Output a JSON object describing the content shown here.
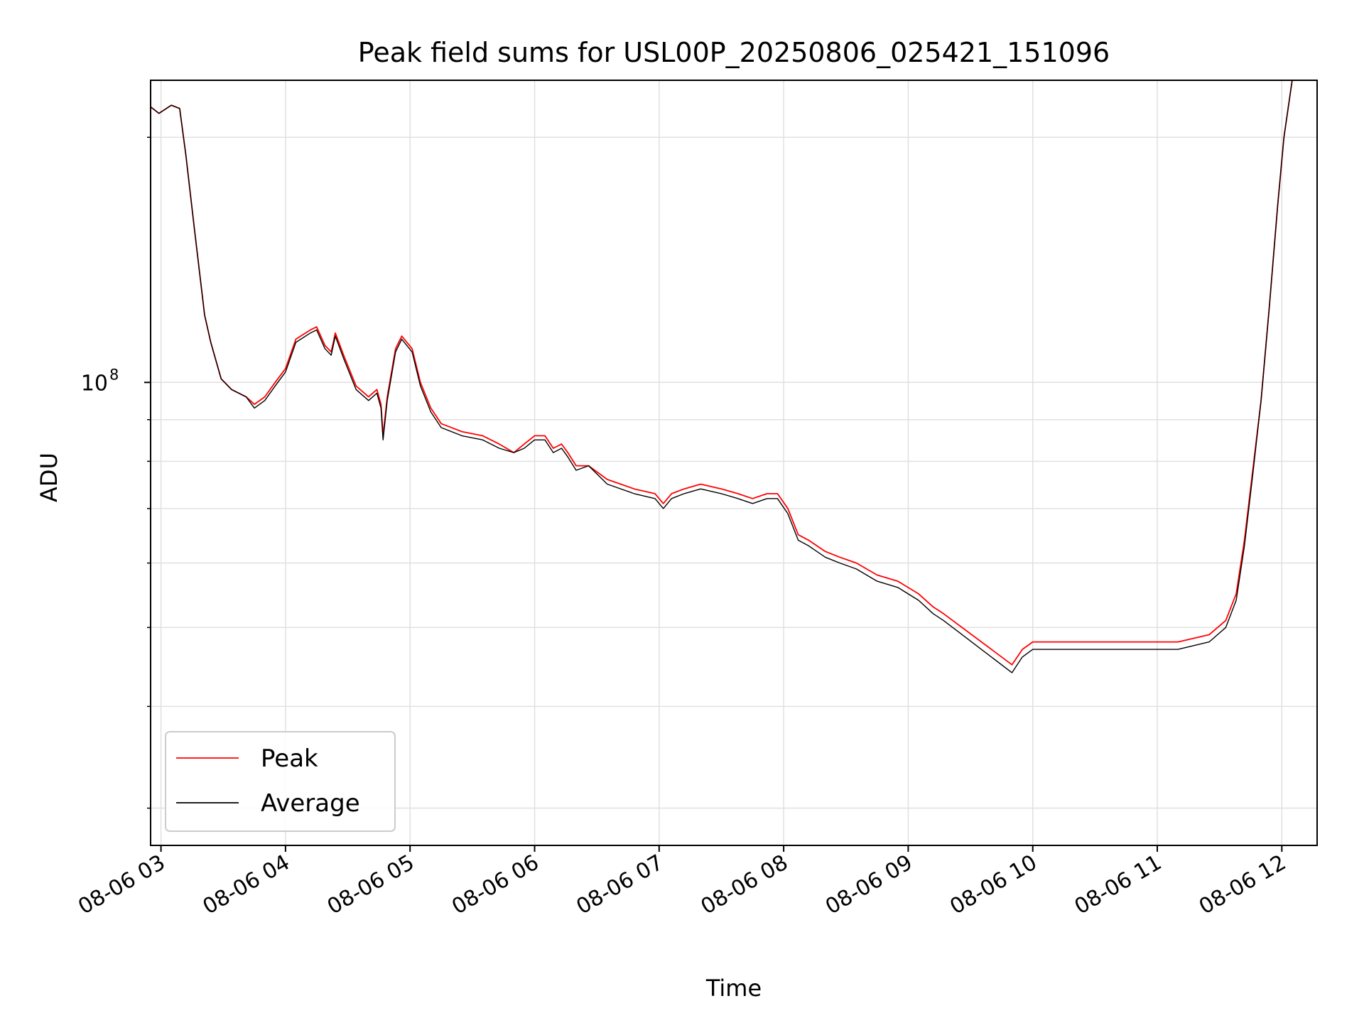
{
  "chart_data": {
    "type": "line",
    "title": "Peak field sums for USL00P_20250806_025421_151096",
    "xlabel": "Time",
    "ylabel": "ADU",
    "yscale": "log",
    "grid": true,
    "legend_position": "lower-left",
    "x_tick_labels": [
      "08-06 03",
      "08-06 04",
      "08-06 05",
      "08-06 06",
      "08-06 07",
      "08-06 08",
      "08-06 09",
      "08-06 10",
      "08-06 11",
      "08-06 12"
    ],
    "y_tick_major_label": "10",
    "y_tick_major_exponent": "8",
    "y_major_value": 100000000,
    "xlim": [
      "2025-08-06 02:55",
      "2025-08-06 12:17"
    ],
    "ylim": [
      27000000,
      235000000
    ],
    "series": [
      {
        "name": "Peak",
        "color": "#ff0000",
        "points": [
          [
            "2025-08-06 02:55",
            218000000
          ],
          [
            "2025-08-06 02:59",
            214000000
          ],
          [
            "2025-08-06 03:05",
            219000000
          ],
          [
            "2025-08-06 03:09",
            217000000
          ],
          [
            "2025-08-06 03:12",
            190000000
          ],
          [
            "2025-08-06 03:16",
            155000000
          ],
          [
            "2025-08-06 03:21",
            121000000
          ],
          [
            "2025-08-06 03:24",
            112000000
          ],
          [
            "2025-08-06 03:29",
            101000000
          ],
          [
            "2025-08-06 03:34",
            98000000
          ],
          [
            "2025-08-06 03:41",
            96000000
          ],
          [
            "2025-08-06 03:45",
            94000000
          ],
          [
            "2025-08-06 03:50",
            96000000
          ],
          [
            "2025-08-06 03:55",
            100000000
          ],
          [
            "2025-08-06 04:00",
            104000000
          ],
          [
            "2025-08-06 04:05",
            113000000
          ],
          [
            "2025-08-06 04:12",
            116000000
          ],
          [
            "2025-08-06 04:15",
            117000000
          ],
          [
            "2025-08-06 04:19",
            111000000
          ],
          [
            "2025-08-06 04:22",
            109000000
          ],
          [
            "2025-08-06 04:24",
            115000000
          ],
          [
            "2025-08-06 04:28",
            108000000
          ],
          [
            "2025-08-06 04:34",
            99000000
          ],
          [
            "2025-08-06 04:40",
            96000000
          ],
          [
            "2025-08-06 04:44",
            98000000
          ],
          [
            "2025-08-06 04:46",
            94000000
          ],
          [
            "2025-08-06 04:47",
            86000000
          ],
          [
            "2025-08-06 04:49",
            96000000
          ],
          [
            "2025-08-06 04:53",
            110000000
          ],
          [
            "2025-08-06 04:56",
            114000000
          ],
          [
            "2025-08-06 05:01",
            110000000
          ],
          [
            "2025-08-06 05:05",
            100000000
          ],
          [
            "2025-08-06 05:10",
            93000000
          ],
          [
            "2025-08-06 05:15",
            89000000
          ],
          [
            "2025-08-06 05:25",
            87000000
          ],
          [
            "2025-08-06 05:35",
            86000000
          ],
          [
            "2025-08-06 05:43",
            84000000
          ],
          [
            "2025-08-06 05:50",
            82000000
          ],
          [
            "2025-08-06 05:55",
            84000000
          ],
          [
            "2025-08-06 06:00",
            86000000
          ],
          [
            "2025-08-06 06:05",
            86000000
          ],
          [
            "2025-08-06 06:09",
            83000000
          ],
          [
            "2025-08-06 06:13",
            84000000
          ],
          [
            "2025-08-06 06:16",
            82000000
          ],
          [
            "2025-08-06 06:20",
            79000000
          ],
          [
            "2025-08-06 06:26",
            79000000
          ],
          [
            "2025-08-06 06:35",
            76000000
          ],
          [
            "2025-08-06 06:48",
            74000000
          ],
          [
            "2025-08-06 06:58",
            73000000
          ],
          [
            "2025-08-06 07:02",
            71000000
          ],
          [
            "2025-08-06 07:06",
            73000000
          ],
          [
            "2025-08-06 07:12",
            74000000
          ],
          [
            "2025-08-06 07:20",
            75000000
          ],
          [
            "2025-08-06 07:30",
            74000000
          ],
          [
            "2025-08-06 07:38",
            73000000
          ],
          [
            "2025-08-06 07:45",
            72000000
          ],
          [
            "2025-08-06 07:52",
            73000000
          ],
          [
            "2025-08-06 07:57",
            73000000
          ],
          [
            "2025-08-06 08:02",
            70000000
          ],
          [
            "2025-08-06 08:07",
            65000000
          ],
          [
            "2025-08-06 08:12",
            64000000
          ],
          [
            "2025-08-06 08:20",
            62000000
          ],
          [
            "2025-08-06 08:27",
            61000000
          ],
          [
            "2025-08-06 08:35",
            60000000
          ],
          [
            "2025-08-06 08:45",
            58000000
          ],
          [
            "2025-08-06 08:55",
            57000000
          ],
          [
            "2025-08-06 09:05",
            55000000
          ],
          [
            "2025-08-06 09:12",
            53000000
          ],
          [
            "2025-08-06 09:17",
            52000000
          ],
          [
            "2025-08-06 09:50",
            45000000
          ],
          [
            "2025-08-06 09:55",
            47000000
          ],
          [
            "2025-08-06 10:00",
            48000000
          ],
          [
            "2025-08-06 10:10",
            48000000
          ],
          [
            "2025-08-06 10:30",
            48000000
          ],
          [
            "2025-08-06 10:50",
            48000000
          ],
          [
            "2025-08-06 11:10",
            48000000
          ],
          [
            "2025-08-06 11:25",
            49000000
          ],
          [
            "2025-08-06 11:33",
            51000000
          ],
          [
            "2025-08-06 11:38",
            55000000
          ],
          [
            "2025-08-06 11:42",
            64000000
          ],
          [
            "2025-08-06 11:46",
            78000000
          ],
          [
            "2025-08-06 11:50",
            95000000
          ],
          [
            "2025-08-06 11:54",
            124000000
          ],
          [
            "2025-08-06 11:58",
            165000000
          ],
          [
            "2025-08-06 12:01",
            200000000
          ],
          [
            "2025-08-06 12:05",
            235000000
          ]
        ]
      },
      {
        "name": "Average",
        "color": "#000000",
        "points": [
          [
            "2025-08-06 02:55",
            218000000
          ],
          [
            "2025-08-06 02:59",
            214000000
          ],
          [
            "2025-08-06 03:05",
            219000000
          ],
          [
            "2025-08-06 03:09",
            217000000
          ],
          [
            "2025-08-06 03:12",
            190000000
          ],
          [
            "2025-08-06 03:16",
            155000000
          ],
          [
            "2025-08-06 03:21",
            121000000
          ],
          [
            "2025-08-06 03:24",
            112000000
          ],
          [
            "2025-08-06 03:29",
            101000000
          ],
          [
            "2025-08-06 03:34",
            98000000
          ],
          [
            "2025-08-06 03:41",
            96000000
          ],
          [
            "2025-08-06 03:45",
            93000000
          ],
          [
            "2025-08-06 03:50",
            95000000
          ],
          [
            "2025-08-06 03:55",
            99000000
          ],
          [
            "2025-08-06 04:00",
            103000000
          ],
          [
            "2025-08-06 04:05",
            112000000
          ],
          [
            "2025-08-06 04:12",
            115000000
          ],
          [
            "2025-08-06 04:15",
            116000000
          ],
          [
            "2025-08-06 04:19",
            110000000
          ],
          [
            "2025-08-06 04:22",
            108000000
          ],
          [
            "2025-08-06 04:24",
            114000000
          ],
          [
            "2025-08-06 04:28",
            107000000
          ],
          [
            "2025-08-06 04:34",
            98000000
          ],
          [
            "2025-08-06 04:40",
            95000000
          ],
          [
            "2025-08-06 04:44",
            97000000
          ],
          [
            "2025-08-06 04:46",
            93000000
          ],
          [
            "2025-08-06 04:47",
            85000000
          ],
          [
            "2025-08-06 04:49",
            95000000
          ],
          [
            "2025-08-06 04:53",
            109000000
          ],
          [
            "2025-08-06 04:56",
            113000000
          ],
          [
            "2025-08-06 05:01",
            109000000
          ],
          [
            "2025-08-06 05:05",
            99000000
          ],
          [
            "2025-08-06 05:10",
            92000000
          ],
          [
            "2025-08-06 05:15",
            88000000
          ],
          [
            "2025-08-06 05:25",
            86000000
          ],
          [
            "2025-08-06 05:35",
            85000000
          ],
          [
            "2025-08-06 05:43",
            83000000
          ],
          [
            "2025-08-06 05:50",
            82000000
          ],
          [
            "2025-08-06 05:55",
            83000000
          ],
          [
            "2025-08-06 06:00",
            85000000
          ],
          [
            "2025-08-06 06:05",
            85000000
          ],
          [
            "2025-08-06 06:09",
            82000000
          ],
          [
            "2025-08-06 06:13",
            83000000
          ],
          [
            "2025-08-06 06:16",
            81000000
          ],
          [
            "2025-08-06 06:20",
            78000000
          ],
          [
            "2025-08-06 06:26",
            79000000
          ],
          [
            "2025-08-06 06:35",
            75000000
          ],
          [
            "2025-08-06 06:48",
            73000000
          ],
          [
            "2025-08-06 06:58",
            72000000
          ],
          [
            "2025-08-06 07:02",
            70000000
          ],
          [
            "2025-08-06 07:06",
            72000000
          ],
          [
            "2025-08-06 07:12",
            73000000
          ],
          [
            "2025-08-06 07:20",
            74000000
          ],
          [
            "2025-08-06 07:30",
            73000000
          ],
          [
            "2025-08-06 07:38",
            72000000
          ],
          [
            "2025-08-06 07:45",
            71000000
          ],
          [
            "2025-08-06 07:52",
            72000000
          ],
          [
            "2025-08-06 07:57",
            72000000
          ],
          [
            "2025-08-06 08:02",
            69000000
          ],
          [
            "2025-08-06 08:07",
            64000000
          ],
          [
            "2025-08-06 08:12",
            63000000
          ],
          [
            "2025-08-06 08:20",
            61000000
          ],
          [
            "2025-08-06 08:27",
            60000000
          ],
          [
            "2025-08-06 08:35",
            59000000
          ],
          [
            "2025-08-06 08:45",
            57000000
          ],
          [
            "2025-08-06 08:55",
            56000000
          ],
          [
            "2025-08-06 09:05",
            54000000
          ],
          [
            "2025-08-06 09:12",
            52000000
          ],
          [
            "2025-08-06 09:17",
            51000000
          ],
          [
            "2025-08-06 09:50",
            44000000
          ],
          [
            "2025-08-06 09:55",
            46000000
          ],
          [
            "2025-08-06 10:00",
            47000000
          ],
          [
            "2025-08-06 10:10",
            47000000
          ],
          [
            "2025-08-06 10:30",
            47000000
          ],
          [
            "2025-08-06 10:50",
            47000000
          ],
          [
            "2025-08-06 11:10",
            47000000
          ],
          [
            "2025-08-06 11:25",
            48000000
          ],
          [
            "2025-08-06 11:33",
            50000000
          ],
          [
            "2025-08-06 11:38",
            54000000
          ],
          [
            "2025-08-06 11:42",
            63000000
          ],
          [
            "2025-08-06 11:46",
            77000000
          ],
          [
            "2025-08-06 11:50",
            95000000
          ],
          [
            "2025-08-06 11:54",
            124000000
          ],
          [
            "2025-08-06 11:58",
            165000000
          ],
          [
            "2025-08-06 12:01",
            200000000
          ],
          [
            "2025-08-06 12:05",
            235000000
          ]
        ]
      }
    ]
  }
}
